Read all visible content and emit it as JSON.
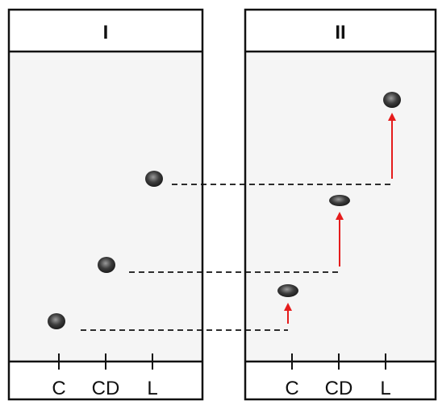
{
  "figure": {
    "panels": [
      {
        "title": "I",
        "lanes": [
          "C",
          "CD",
          "L"
        ]
      },
      {
        "title": "II",
        "lanes": [
          "C",
          "CD",
          "L"
        ]
      }
    ],
    "colors": {
      "frame": "#111111",
      "spot": "#333333",
      "guide_line": "#111111",
      "shift_arrow": "#e51c1c",
      "background": "#ffffff",
      "gel": "#f4f4f4"
    }
  }
}
